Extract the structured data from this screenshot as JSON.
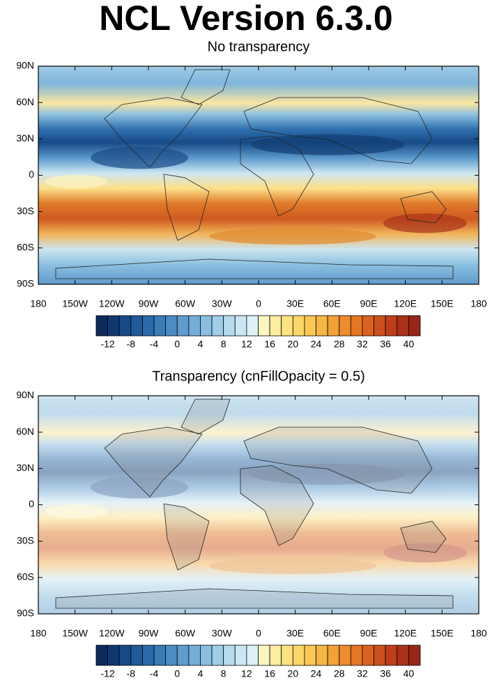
{
  "title": "NCL Version 6.3.0",
  "panels": [
    {
      "subtitle": "No transparency",
      "fill_opacity": 1,
      "x_labels": [
        "180",
        "150W",
        "120W",
        "90W",
        "60W",
        "30W",
        "0",
        "30E",
        "60E",
        "90E",
        "120E",
        "150E",
        "180"
      ],
      "y_labels": [
        "90N",
        "60N",
        "30N",
        "0",
        "30S",
        "60S",
        "90S"
      ],
      "colorbar": {
        "colors": [
          "#0b2a5c",
          "#10386f",
          "#174a86",
          "#1f5a9a",
          "#2b6aaa",
          "#3a7bb8",
          "#4c8cc4",
          "#5f9dcf",
          "#73add8",
          "#89bee1",
          "#a0cde8",
          "#b6dbee",
          "#cbe7f3",
          "#def1f7",
          "#fdf5c0",
          "#fdeda0",
          "#fde382",
          "#fcd767",
          "#f9c855",
          "#f6b645",
          "#f2a237",
          "#ec8c2c",
          "#e47624",
          "#d9621e",
          "#cc501b",
          "#bd3f19",
          "#ab3118",
          "#972618"
        ],
        "labels": [
          -12,
          -8,
          -4,
          0,
          4,
          8,
          12,
          16,
          20,
          24,
          28,
          32,
          36,
          40
        ]
      }
    },
    {
      "subtitle": "Transparency (cnFillOpacity = 0.5)",
      "fill_opacity": 0.5,
      "x_labels": [
        "180",
        "150W",
        "120W",
        "90W",
        "60W",
        "30W",
        "0",
        "30E",
        "60E",
        "90E",
        "120E",
        "150E",
        "180"
      ],
      "y_labels": [
        "90N",
        "60N",
        "30N",
        "0",
        "30S",
        "60S",
        "90S"
      ],
      "colorbar": {
        "colors": [
          "#0b2a5c",
          "#10386f",
          "#174a86",
          "#1f5a9a",
          "#2b6aaa",
          "#3a7bb8",
          "#4c8cc4",
          "#5f9dcf",
          "#73add8",
          "#89bee1",
          "#a0cde8",
          "#b6dbee",
          "#cbe7f3",
          "#def1f7",
          "#fdf5c0",
          "#fdeda0",
          "#fde382",
          "#fcd767",
          "#f9c855",
          "#f6b645",
          "#f2a237",
          "#ec8c2c",
          "#e47624",
          "#d9621e",
          "#cc501b",
          "#bd3f19",
          "#ab3118",
          "#972618"
        ],
        "labels": [
          -12,
          -8,
          -4,
          0,
          4,
          8,
          12,
          16,
          20,
          24,
          28,
          32,
          36,
          40
        ]
      }
    }
  ]
}
